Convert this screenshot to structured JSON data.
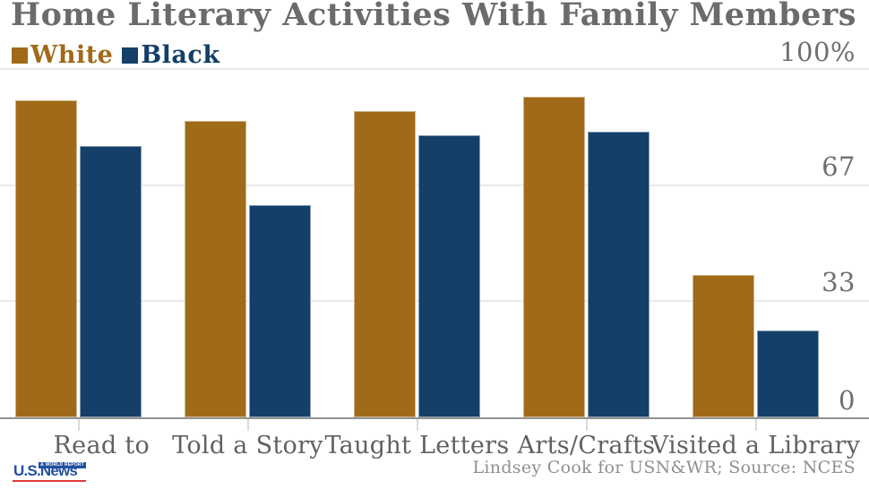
{
  "title": "Home Literary Activities With Family Members",
  "legend": [
    {
      "label": "White",
      "color": "#a06a18"
    },
    {
      "label": "Black",
      "color": "#133f68"
    }
  ],
  "chart_data": {
    "type": "bar",
    "title": "Home Literary Activities With Family Members",
    "categories": [
      "Read to",
      "Told a Story",
      "Taught Letters",
      "Arts/Crafts",
      "Visited a Library"
    ],
    "series": [
      {
        "name": "White",
        "color": "#a06a18",
        "values": [
          91,
          85,
          88,
          92,
          41
        ]
      },
      {
        "name": "Black",
        "color": "#133f68",
        "values": [
          78,
          61,
          81,
          82,
          25
        ]
      }
    ],
    "unit": "%",
    "ylim": [
      0,
      100
    ],
    "yticks": [
      100,
      67,
      33,
      0
    ],
    "ylabels": [
      "100%",
      "67",
      "33",
      "0"
    ],
    "grid": "horizontal",
    "legend_position": "top-left"
  },
  "footer": {
    "credit": "Lindsey Cook for USN&WR; Source: NCES"
  },
  "logo": {
    "main": "U.S.News",
    "sub": "& WORLD REPORT"
  },
  "colors": {
    "white_series": "#a06a18",
    "black_series": "#133f68",
    "title_text": "#6b6b6b",
    "axis_text": "#6f6f6f",
    "gridline": "#eaeaea",
    "axis_line": "#929292",
    "credit_text": "#8f8f8f",
    "logo_blue": "#2350a2",
    "logo_red": "#e23a3e"
  }
}
